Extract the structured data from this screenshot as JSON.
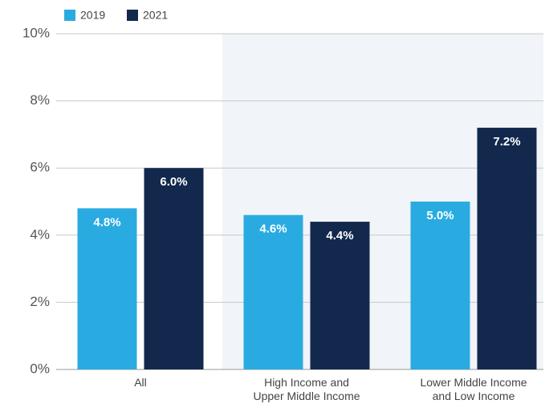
{
  "chart_data": {
    "type": "bar",
    "categories": [
      "All",
      "High Income and\nUpper Middle Income",
      "Lower Middle Income\nand Low Income"
    ],
    "series": [
      {
        "name": "2019",
        "color": "#29abe2",
        "values": [
          4.8,
          4.6,
          5.0
        ],
        "value_labels": [
          "4.8%",
          "4.6%",
          "5.0%"
        ]
      },
      {
        "name": "2021",
        "color": "#12294d",
        "values": [
          6.0,
          4.4,
          7.2
        ],
        "value_labels": [
          "6.0%",
          "4.4%",
          "7.2%"
        ]
      }
    ],
    "ylim": [
      0,
      10
    ],
    "yticks": [
      {
        "value": 0,
        "label": "0%"
      },
      {
        "value": 2,
        "label": "2%"
      },
      {
        "value": 4,
        "label": "4%"
      },
      {
        "value": 6,
        "label": "6%"
      },
      {
        "value": 8,
        "label": "8%"
      },
      {
        "value": 10,
        "label": "10%"
      }
    ],
    "grid": true,
    "legend": "top-left"
  }
}
